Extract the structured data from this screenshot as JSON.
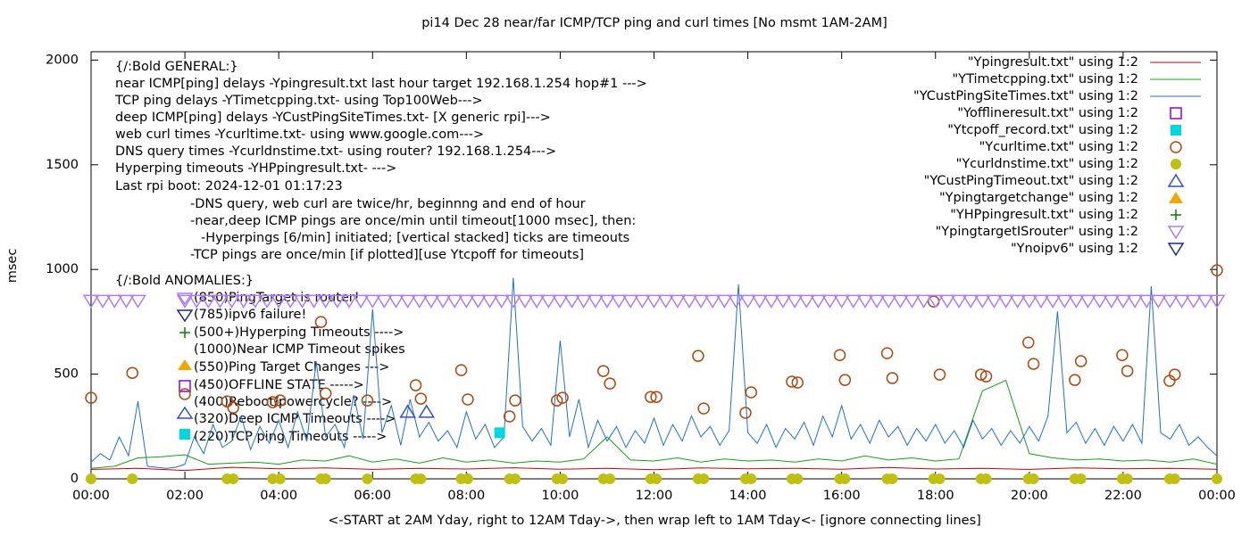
{
  "chart_data": {
    "type": "line",
    "title": "pi14 Dec 28  near/far ICMP/TCP ping and curl times [No msmt 1AM-2AM]",
    "x_label": "<-START at 2AM Yday, right to 12AM Tday->, then wrap left to 1AM Tday<- [ignore connecting lines]",
    "y_label": "msec",
    "xlim": [
      0,
      24
    ],
    "xticks": [
      {
        "value": 0,
        "label": "00:00"
      },
      {
        "value": 2,
        "label": "02:00"
      },
      {
        "value": 4,
        "label": "04:00"
      },
      {
        "value": 6,
        "label": "06:00"
      },
      {
        "value": 8,
        "label": "08:00"
      },
      {
        "value": 10,
        "label": "10:00"
      },
      {
        "value": 12,
        "label": "12:00"
      },
      {
        "value": 14,
        "label": "14:00"
      },
      {
        "value": 16,
        "label": "16:00"
      },
      {
        "value": 18,
        "label": "18:00"
      },
      {
        "value": 20,
        "label": "20:00"
      },
      {
        "value": 22,
        "label": "22:00"
      },
      {
        "value": 24,
        "label": "00:00"
      }
    ],
    "ylim": [
      0,
      2040
    ],
    "yticks": [
      0,
      500,
      1000,
      1500,
      2000
    ],
    "legend": "top-right",
    "annotations": [
      "{/:Bold GENERAL:}",
      "near ICMP[ping] delays -Ypingresult.txt last hour target 192.168.1.254 hop#1 --->",
      "TCP ping delays -YTimetcpping.txt- using Top100Web--->",
      "deep ICMP[ping] delays -YCustPingSiteTimes.txt- [X generic rpi]--->",
      "web curl times -Ycurltime.txt- using www.google.com--->",
      "DNS query times -Ycurldnstime.txt- using router? 192.168.1.254--->",
      "Hyperping timeouts -YHPpingresult.txt- --->",
      "Last rpi boot: 2024-12-01 01:17:23",
      "-DNS query, web curl are twice/hr, beginnng and end of hour",
      "-near,deep ICMP pings are once/min until timeout[1000 msec], then:",
      "-Hyperpings [6/min] initiated; [vertical stacked] ticks are timeouts",
      "-TCP pings are once/min [if plotted][use Ytcpoff for timeouts]",
      "{/:Bold ANOMALIES:}",
      "(850)PingTarget is router!",
      "(785)ipv6 failure!",
      "(500+)Hyperping Timeouts ---->",
      "(1000)Near ICMP Timeout spikes",
      "(550)Ping Target Changes --->",
      "(450)OFFLINE STATE ----->",
      "(400)Reboot/powercycle? ---->",
      "(320)Deep ICMP Timeouts ---->",
      "(220)TCP ping Timeouts ----->"
    ],
    "series": [
      {
        "name": "\"Ypingresult.txt\" using 1:2",
        "color": "#cc0000",
        "style": "line",
        "x": [
          0,
          1,
          2,
          3,
          4,
          5,
          6,
          7,
          8,
          9,
          10,
          11,
          12,
          13,
          14,
          15,
          16,
          17,
          18,
          19,
          20,
          21,
          22,
          23,
          24
        ],
        "values": [
          45,
          50,
          40,
          55,
          48,
          52,
          45,
          50,
          47,
          53,
          46,
          50,
          44,
          52,
          48,
          50,
          46,
          54,
          47,
          50,
          45,
          52,
          48,
          50,
          46
        ]
      },
      {
        "name": "\"YTimetcpping.txt\" using 1:2",
        "color": "#18a018",
        "style": "line",
        "x": [
          0,
          0.5,
          1,
          1.5,
          2,
          2.5,
          3,
          3.5,
          4,
          4.5,
          5,
          5.5,
          6,
          6.5,
          7,
          7.5,
          8,
          8.5,
          9,
          9.5,
          10,
          10.5,
          11,
          11.5,
          12,
          12.5,
          13,
          13.5,
          14,
          14.5,
          15,
          15.5,
          16,
          16.5,
          17,
          17.5,
          18,
          18.5,
          19,
          19.5,
          20,
          20.5,
          21,
          21.5,
          22,
          22.5,
          23,
          23.5,
          24
        ],
        "values": [
          50,
          60,
          100,
          105,
          115,
          70,
          75,
          80,
          70,
          90,
          85,
          110,
          80,
          95,
          75,
          100,
          80,
          90,
          75,
          85,
          80,
          95,
          200,
          90,
          85,
          100,
          80,
          95,
          85,
          90,
          80,
          95,
          85,
          110,
          90,
          100,
          85,
          95,
          420,
          470,
          120,
          100,
          90,
          95,
          85,
          90,
          80,
          95,
          70
        ]
      },
      {
        "name": "\"YCustPingSiteTimes.txt\" using 1:2",
        "color": "#1f70d0",
        "style": "line",
        "x": [
          0,
          0.2,
          0.4,
          0.6,
          0.8,
          1,
          1.2,
          1.4,
          1.6,
          1.8,
          2,
          2.2,
          2.4,
          2.6,
          2.8,
          3,
          3.2,
          3.4,
          3.6,
          3.8,
          4,
          4.2,
          4.4,
          4.6,
          4.8,
          5,
          5.2,
          5.4,
          5.6,
          5.8,
          6,
          6.2,
          6.4,
          6.6,
          6.8,
          7,
          7.2,
          7.4,
          7.6,
          7.8,
          8,
          8.2,
          8.4,
          8.6,
          8.8,
          9,
          9.2,
          9.4,
          9.6,
          9.8,
          10,
          10.2,
          10.4,
          10.6,
          10.8,
          11,
          11.2,
          11.4,
          11.6,
          11.8,
          12,
          12.2,
          12.4,
          12.6,
          12.8,
          13,
          13.2,
          13.4,
          13.6,
          13.8,
          14,
          14.2,
          14.4,
          14.6,
          14.8,
          15,
          15.2,
          15.4,
          15.6,
          15.8,
          16,
          16.2,
          16.4,
          16.6,
          16.8,
          17,
          17.2,
          17.4,
          17.6,
          17.8,
          18,
          18.2,
          18.4,
          18.6,
          18.8,
          19,
          19.2,
          19.4,
          19.6,
          19.8,
          20,
          20.2,
          20.4,
          20.6,
          20.8,
          21,
          21.2,
          21.4,
          21.6,
          21.8,
          22,
          22.2,
          22.4,
          22.6,
          22.8,
          23,
          23.2,
          23.4,
          23.6,
          23.8,
          24
        ],
        "values": [
          80,
          120,
          90,
          200,
          110,
          370,
          60,
          55,
          50,
          55,
          70,
          200,
          120,
          260,
          150,
          180,
          300,
          140,
          250,
          170,
          280,
          150,
          320,
          180,
          560,
          200,
          260,
          150,
          400,
          190,
          810,
          220,
          350,
          160,
          380,
          200,
          270,
          180,
          230,
          150,
          320,
          190,
          260,
          150,
          200,
          960,
          250,
          180,
          240,
          160,
          660,
          200,
          380,
          150,
          280,
          180,
          250,
          150,
          230,
          170,
          290,
          160,
          260,
          180,
          300,
          200,
          250,
          160,
          230,
          930,
          220,
          170,
          260,
          150,
          240,
          190,
          270,
          160,
          300,
          200,
          350,
          190,
          260,
          170,
          280,
          200,
          250,
          160,
          240,
          180,
          260,
          170,
          230,
          150,
          280,
          190,
          240,
          160,
          230,
          170,
          250,
          180,
          300,
          800,
          220,
          270,
          170,
          240,
          160,
          250,
          180,
          260,
          170,
          920,
          220,
          190,
          260,
          160,
          200,
          150,
          110
        ]
      },
      {
        "name": "\"Yofflineresult.txt\" using 1:2",
        "color": "#9400d3",
        "style": "points",
        "marker": "square-open",
        "x": [],
        "values": []
      },
      {
        "name": "\"Ytcpoff_record.txt\" using 1:2",
        "color": "#00d8e0",
        "style": "points",
        "marker": "square",
        "x": [
          8.71
        ],
        "values": [
          220
        ]
      },
      {
        "name": "\"Ycurltime.txt\" using 1:2",
        "color": "#b0480e",
        "style": "points",
        "marker": "circle-open",
        "x": [
          0,
          0.88,
          2.9,
          3.03,
          3.87,
          4.03,
          4.9,
          5.0,
          5.89,
          6.92,
          7.03,
          7.89,
          8.03,
          8.92,
          9.04,
          9.93,
          10.05,
          10.92,
          11.06,
          11.93,
          12.05,
          12.94,
          13.06,
          13.95,
          14.07,
          14.94,
          15.06,
          15.96,
          16.07,
          16.97,
          17.08,
          17.96,
          18.09,
          18.97,
          19.08,
          19.98,
          20.09,
          20.97,
          21.1,
          21.98,
          22.09,
          22.99,
          23.1,
          24
        ],
        "values": [
          387,
          506,
          370,
          340,
          366,
          374,
          749,
          408,
          374,
          447,
          383,
          519,
          379,
          298,
          374,
          374,
          387,
          515,
          455,
          391,
          391,
          587,
          336,
          315,
          413,
          464,
          460,
          591,
          472,
          600,
          481,
          847,
          498,
          498,
          489,
          651,
          549,
          472,
          562,
          591,
          515,
          468,
          498,
          996
        ]
      },
      {
        "name": "\"Ycurldnstime.txt\" using 1:2",
        "color": "#c0c010",
        "style": "points",
        "marker": "circle",
        "x": [
          0,
          0.88,
          2.9,
          3.03,
          3.87,
          4.03,
          4.9,
          5.0,
          5.89,
          6.92,
          7.03,
          7.89,
          8.03,
          8.92,
          9.04,
          9.93,
          10.05,
          10.92,
          11.06,
          11.93,
          12.05,
          12.94,
          13.06,
          13.95,
          14.07,
          14.94,
          15.06,
          15.96,
          16.07,
          16.97,
          17.08,
          17.96,
          18.09,
          18.97,
          19.08,
          19.98,
          20.09,
          20.97,
          21.1,
          21.98,
          22.09,
          22.99,
          23.1,
          24
        ],
        "values": [
          0,
          0,
          0,
          0,
          0,
          0,
          0,
          0,
          0,
          0,
          0,
          0,
          0,
          0,
          0,
          0,
          0,
          0,
          0,
          0,
          0,
          0,
          0,
          0,
          0,
          0,
          0,
          0,
          0,
          0,
          0,
          0,
          0,
          0,
          0,
          0,
          0,
          0,
          0,
          0,
          0,
          0,
          0,
          0
        ]
      },
      {
        "name": "\"YCustPingTimeout.txt\" using 1:2",
        "color": "#3050c8",
        "style": "points",
        "marker": "triangle-open",
        "x": [
          6.75,
          7.15
        ],
        "values": [
          320,
          320
        ]
      },
      {
        "name": "\"Ypingtargetchange\" using 1:2",
        "color": "#f0a800",
        "style": "points",
        "marker": "triangle",
        "x": [],
        "values": []
      },
      {
        "name": "\"YHPpingresult.txt\" using 1:2",
        "color": "#107810",
        "style": "points",
        "marker": "plus",
        "x": [],
        "values": []
      },
      {
        "name": "\"YpingtargetISrouter\" using 1:2",
        "color": "#b07cf4",
        "style": "points",
        "marker": "triangle-down-open",
        "x": [
          0,
          0.25,
          0.5,
          0.75,
          1,
          2,
          2.25,
          2.5,
          2.75,
          3,
          3.25,
          3.5,
          3.75,
          4,
          4.25,
          4.5,
          4.75,
          5,
          5.25,
          5.5,
          5.75,
          6,
          6.25,
          6.5,
          6.75,
          7,
          7.25,
          7.5,
          7.75,
          8,
          8.25,
          8.5,
          8.75,
          9,
          9.25,
          9.5,
          9.75,
          10,
          10.25,
          10.5,
          10.75,
          11,
          11.25,
          11.5,
          11.75,
          12,
          12.25,
          12.5,
          12.75,
          13,
          13.25,
          13.5,
          13.75,
          14,
          14.25,
          14.5,
          14.75,
          15,
          15.25,
          15.5,
          15.75,
          16,
          16.25,
          16.5,
          16.75,
          17,
          17.25,
          17.5,
          17.75,
          18,
          18.25,
          18.5,
          18.75,
          19,
          19.25,
          19.5,
          19.75,
          20,
          20.25,
          20.5,
          20.75,
          21,
          21.25,
          21.5,
          21.75,
          22,
          22.25,
          22.5,
          22.75,
          23,
          23.25,
          23.5,
          23.75,
          24
        ],
        "values": [
          850,
          850,
          850,
          850,
          850,
          850,
          850,
          850,
          850,
          850,
          850,
          850,
          850,
          850,
          850,
          850,
          850,
          850,
          850,
          850,
          850,
          850,
          850,
          850,
          850,
          850,
          850,
          850,
          850,
          850,
          850,
          850,
          850,
          850,
          850,
          850,
          850,
          850,
          850,
          850,
          850,
          850,
          850,
          850,
          850,
          850,
          850,
          850,
          850,
          850,
          850,
          850,
          850,
          850,
          850,
          850,
          850,
          850,
          850,
          850,
          850,
          850,
          850,
          850,
          850,
          850,
          850,
          850,
          850,
          850,
          850,
          850,
          850,
          850,
          850,
          850,
          850,
          850,
          850,
          850,
          850,
          850,
          850,
          850,
          850,
          850,
          850,
          850,
          850,
          850,
          850,
          850,
          850,
          850
        ]
      },
      {
        "name": "\"Ynoipv6\" using 1:2",
        "color": "#1a2a80",
        "style": "points",
        "marker": "triangle-down-open",
        "x": [],
        "values": []
      }
    ]
  }
}
